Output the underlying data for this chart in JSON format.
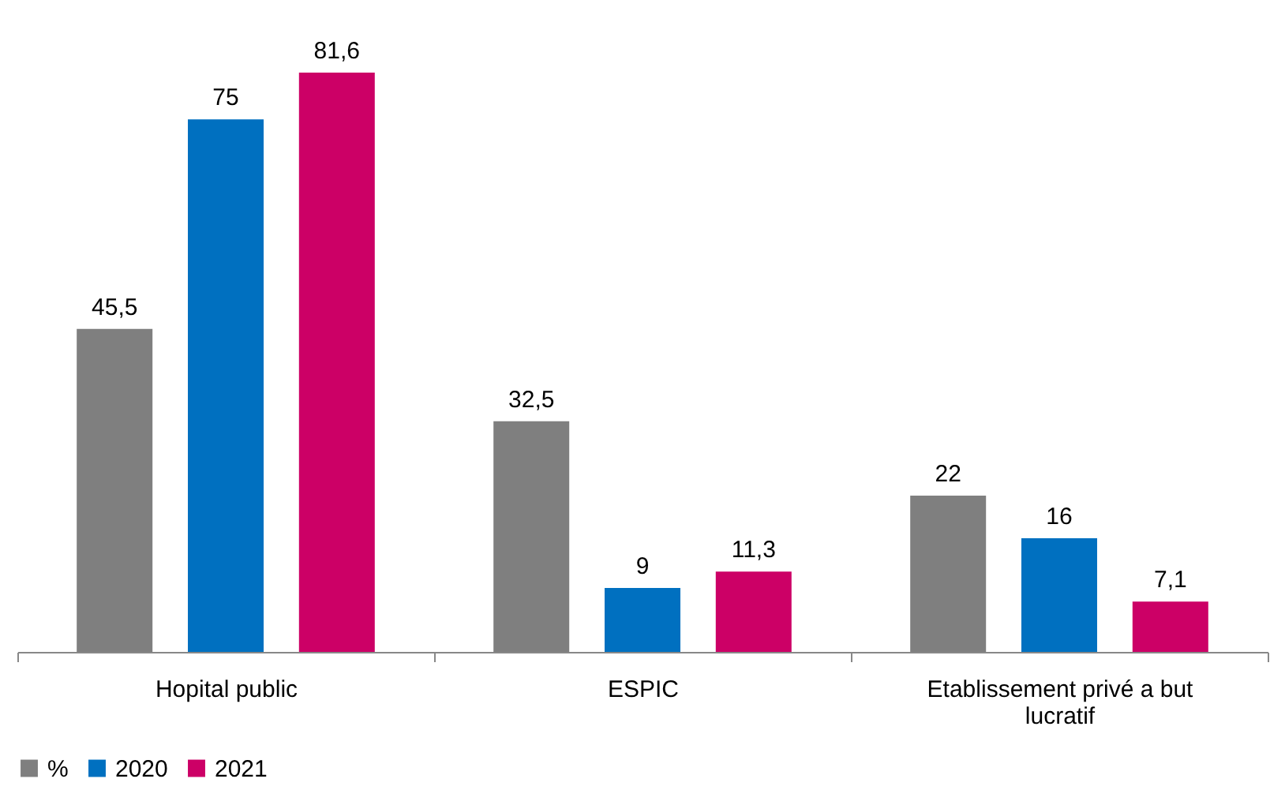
{
  "chart_data": {
    "type": "bar",
    "categories": [
      "Hopital public",
      "ESPIC",
      "Etablissement privé a but lucratif"
    ],
    "series": [
      {
        "name": "%",
        "color": "#7f7f7f",
        "values": [
          45.5,
          32.5,
          22
        ],
        "value_labels": [
          "45,5",
          "32,5",
          "22"
        ]
      },
      {
        "name": "2020",
        "color": "#0070c0",
        "values": [
          75,
          9,
          16
        ],
        "value_labels": [
          "75",
          "9",
          "16"
        ]
      },
      {
        "name": "2021",
        "color": "#cc0066",
        "values": [
          81.6,
          11.3,
          7.1
        ],
        "value_labels": [
          "81,6",
          "11,3",
          "7,1"
        ]
      }
    ],
    "legend": "bottom",
    "grid": false
  }
}
